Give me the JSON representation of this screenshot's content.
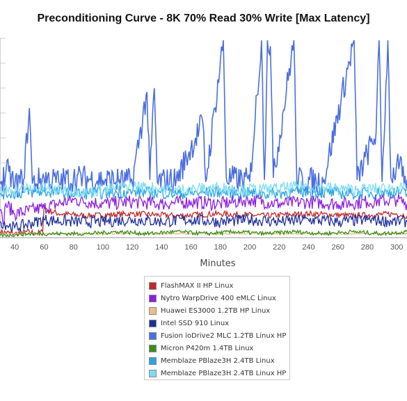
{
  "chart_data": {
    "type": "line",
    "title": "Preconditioning Curve - 8K 70% Read 30% Write [Max Latency]",
    "xlabel": "Minutes",
    "ylabel": "",
    "xlim": [
      30,
      307
    ],
    "xticks": [
      40,
      60,
      80,
      100,
      120,
      140,
      160,
      180,
      200,
      220,
      240,
      260,
      280,
      300
    ],
    "ylim": [
      0,
      100
    ],
    "grid": true,
    "legend_position": "bottom-center",
    "series": [
      {
        "name": "FlashMAX II HP Linux",
        "color": "#c0282b",
        "points": [
          [
            30,
            3
          ],
          [
            40,
            2
          ],
          [
            50,
            3
          ],
          [
            55,
            2
          ],
          [
            59,
            3
          ],
          [
            60,
            16
          ],
          [
            62,
            14
          ],
          [
            70,
            12
          ],
          [
            90,
            11
          ],
          [
            120,
            12
          ],
          [
            150,
            11
          ],
          [
            180,
            12
          ],
          [
            210,
            11
          ],
          [
            240,
            12
          ],
          [
            270,
            11
          ],
          [
            300,
            12
          ],
          [
            307,
            11
          ]
        ]
      },
      {
        "name": "Nytro WarpDrive 400 eMLC Linux",
        "color": "#8b1ee0",
        "points": [
          [
            30,
            14
          ],
          [
            32,
            7
          ],
          [
            34,
            17
          ],
          [
            40,
            12
          ],
          [
            60,
            15
          ],
          [
            80,
            19
          ],
          [
            100,
            17
          ],
          [
            120,
            18
          ],
          [
            140,
            17
          ],
          [
            160,
            18
          ],
          [
            180,
            17
          ],
          [
            200,
            19
          ],
          [
            220,
            17
          ],
          [
            240,
            18
          ],
          [
            260,
            17
          ],
          [
            280,
            18
          ],
          [
            300,
            19
          ],
          [
            307,
            17
          ]
        ]
      },
      {
        "name": "Huawei ES3000 1.2TB HP Linux",
        "color": "#e9c08a",
        "points": [
          [
            30,
            2
          ],
          [
            60,
            2
          ],
          [
            100,
            2
          ],
          [
            140,
            2
          ],
          [
            180,
            2
          ],
          [
            220,
            2
          ],
          [
            260,
            2
          ],
          [
            300,
            2
          ],
          [
            307,
            2
          ]
        ]
      },
      {
        "name": "Intel SSD 910 Linux",
        "color": "#1e2f9b",
        "points": [
          [
            30,
            8
          ],
          [
            40,
            5
          ],
          [
            60,
            9
          ],
          [
            80,
            8
          ],
          [
            100,
            8
          ],
          [
            120,
            9
          ],
          [
            140,
            8
          ],
          [
            160,
            9
          ],
          [
            180,
            8
          ],
          [
            200,
            9
          ],
          [
            220,
            8
          ],
          [
            240,
            9
          ],
          [
            260,
            8
          ],
          [
            280,
            9
          ],
          [
            300,
            8
          ],
          [
            307,
            8
          ]
        ]
      },
      {
        "name": "Fusion ioDrive2 MLC 1.2TB Linux HP",
        "color": "#4a6ee0",
        "points": [
          [
            30,
            28
          ],
          [
            36,
            33
          ],
          [
            40,
            26
          ],
          [
            46,
            29
          ],
          [
            50,
            65
          ],
          [
            52,
            27
          ],
          [
            60,
            30
          ],
          [
            70,
            28
          ],
          [
            80,
            30
          ],
          [
            100,
            29
          ],
          [
            120,
            28
          ],
          [
            130,
            73
          ],
          [
            132,
            29
          ],
          [
            135,
            75
          ],
          [
            137,
            28
          ],
          [
            150,
            29
          ],
          [
            168,
            58
          ],
          [
            170,
            28
          ],
          [
            182,
            99
          ],
          [
            184,
            30
          ],
          [
            200,
            28
          ],
          [
            208,
            99
          ],
          [
            210,
            29
          ],
          [
            212,
            99
          ],
          [
            214,
            96
          ],
          [
            216,
            30
          ],
          [
            230,
            99
          ],
          [
            232,
            29
          ],
          [
            250,
            28
          ],
          [
            271,
            99
          ],
          [
            273,
            29
          ],
          [
            286,
            53
          ],
          [
            288,
            99
          ],
          [
            290,
            28
          ],
          [
            294,
            99
          ],
          [
            296,
            30
          ],
          [
            302,
            37
          ],
          [
            305,
            27
          ],
          [
            307,
            29
          ]
        ]
      },
      {
        "name": "Micron P420m 1.4TB Linux",
        "color": "#3a8f1a",
        "points": [
          [
            30,
            1
          ],
          [
            50,
            2
          ],
          [
            70,
            2
          ],
          [
            90,
            2
          ],
          [
            110,
            3
          ],
          [
            130,
            2
          ],
          [
            150,
            3
          ],
          [
            170,
            2
          ],
          [
            190,
            3
          ],
          [
            210,
            2
          ],
          [
            230,
            3
          ],
          [
            250,
            2
          ],
          [
            270,
            3
          ],
          [
            290,
            2
          ],
          [
            307,
            3
          ]
        ]
      },
      {
        "name": "Memblaze PBlaze3H 2.4TB Linux",
        "color": "#2aa4e0",
        "points": [
          [
            30,
            22
          ],
          [
            60,
            23
          ],
          [
            90,
            22
          ],
          [
            120,
            23
          ],
          [
            150,
            22
          ],
          [
            180,
            23
          ],
          [
            210,
            22
          ],
          [
            240,
            23
          ],
          [
            270,
            22
          ],
          [
            300,
            23
          ],
          [
            307,
            22
          ]
        ]
      },
      {
        "name": "Memblaze PBlaze3H 2.4TB Linux HP",
        "color": "#7fdcf5",
        "points": [
          [
            30,
            24
          ],
          [
            60,
            25
          ],
          [
            90,
            23
          ],
          [
            120,
            26
          ],
          [
            150,
            24
          ],
          [
            180,
            25
          ],
          [
            210,
            24
          ],
          [
            240,
            26
          ],
          [
            270,
            24
          ],
          [
            300,
            25
          ],
          [
            307,
            24
          ]
        ]
      }
    ]
  }
}
